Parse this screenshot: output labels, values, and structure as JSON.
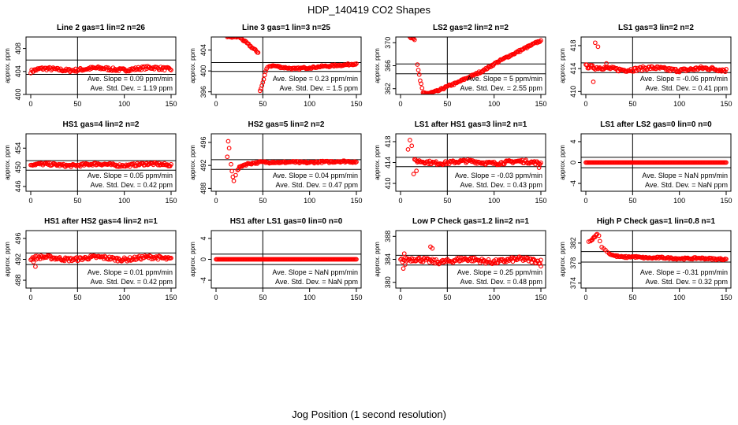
{
  "title": "HDP_140419  CO2 Shapes",
  "xlabel": "Jog Position (1 second resolution)",
  "ylabel": "approx. ppm",
  "colors": {
    "points": "#ff0000",
    "axes": "#000000",
    "background": "#ffffff"
  },
  "chart_data": [
    {
      "type": "scatter",
      "title": "Line 2 gas=1 lin=2 n=26",
      "xlim": [
        0,
        150
      ],
      "ylim": [
        400,
        410
      ],
      "xticks": [
        0,
        50,
        100,
        150
      ],
      "yticks": [
        400,
        404,
        408
      ],
      "hlines": [
        406,
        403.5
      ],
      "vline": 50,
      "slope_text": "Ave. Slope =  0.09  ppm/min",
      "sd_text": "Ave. Std. Dev. =  1.19  ppm",
      "series": {
        "gen": "flat",
        "n": 150,
        "base": 404.3,
        "noise": 0.35,
        "trend": 0.0015,
        "start": 404.0
      }
    },
    {
      "type": "scatter",
      "title": "Line 3 gas=1 lin=3 n=25",
      "xlim": [
        0,
        150
      ],
      "ylim": [
        395.5,
        406.5
      ],
      "xticks": [
        0,
        50,
        100,
        150
      ],
      "yticks": [
        396,
        400,
        404
      ],
      "hlines": [
        401.6,
        399.9
      ],
      "vline": 50,
      "slope_text": "Ave. Slope =  0.23  ppm/min",
      "sd_text": "Ave. Std. Dev. =  1.5  ppm",
      "series": {
        "gen": "dip",
        "points": [
          [
            12,
            406.5
          ],
          [
            15,
            406.5
          ],
          [
            20,
            406.5
          ],
          [
            25,
            406.5
          ],
          [
            45,
            403.5
          ],
          [
            47,
            396.2
          ],
          [
            48,
            396.6
          ],
          [
            49,
            397.2
          ],
          [
            50,
            397.8
          ],
          [
            51,
            398.4
          ],
          [
            52,
            399.2
          ],
          [
            53,
            399.9
          ],
          [
            54,
            400.4
          ],
          [
            55,
            400.7
          ],
          [
            57,
            400.9
          ],
          [
            60,
            401.0
          ],
          [
            65,
            400.9
          ],
          [
            70,
            400.7
          ],
          [
            75,
            400.6
          ],
          [
            80,
            400.5
          ],
          [
            85,
            400.4
          ],
          [
            90,
            400.5
          ],
          [
            95,
            400.6
          ],
          [
            100,
            400.6
          ],
          [
            105,
            400.7
          ],
          [
            110,
            400.8
          ],
          [
            115,
            400.9
          ],
          [
            120,
            400.9
          ],
          [
            125,
            401.0
          ],
          [
            130,
            401.1
          ],
          [
            135,
            401.1
          ],
          [
            140,
            401.2
          ],
          [
            145,
            401.3
          ],
          [
            150,
            401.4
          ]
        ]
      }
    },
    {
      "type": "scatter",
      "title": "LS2 gas=2 lin=2 n=2",
      "xlim": [
        0,
        150
      ],
      "ylim": [
        361,
        371
      ],
      "xticks": [
        0,
        50,
        100,
        150
      ],
      "yticks": [
        362,
        366,
        370
      ],
      "hlines": [
        366.3,
        364.6
      ],
      "vline": 50,
      "slope_text": "Ave. Slope =  5  ppm/min",
      "sd_text": "Ave. Std. Dev. =  2.55  ppm",
      "series": {
        "gen": "ramp",
        "points": [
          [
            10,
            371
          ],
          [
            15,
            370.5
          ],
          [
            18,
            366.2
          ],
          [
            21,
            363.4
          ],
          [
            24,
            361.3
          ],
          [
            30,
            361.2
          ],
          [
            40,
            361.6
          ],
          [
            50,
            362.4
          ],
          [
            60,
            363.0
          ],
          [
            70,
            363.8
          ],
          [
            80,
            364.5
          ],
          [
            90,
            365.3
          ],
          [
            100,
            366.3
          ],
          [
            110,
            367.2
          ],
          [
            120,
            368.0
          ],
          [
            130,
            368.8
          ],
          [
            140,
            369.6
          ],
          [
            150,
            370.4
          ]
        ]
      }
    },
    {
      "type": "scatter",
      "title": "LS1 gas=3 lin=2 n=2",
      "xlim": [
        0,
        150
      ],
      "ylim": [
        409.5,
        419.5
      ],
      "xticks": [
        0,
        50,
        100,
        150
      ],
      "yticks": [
        410,
        414,
        418
      ],
      "hlines": [
        415.0,
        413.3
      ],
      "vline": 50,
      "slope_text": "Ave. Slope =  -0.06  ppm/min",
      "sd_text": "Ave. Std. Dev. =  0.41  ppm",
      "series": {
        "gen": "flat",
        "n": 150,
        "base": 414.0,
        "noise": 0.4,
        "trend": -0.001,
        "start": 414.4,
        "extra": [
          [
            10,
            418.5
          ],
          [
            13,
            417.8
          ],
          [
            8,
            411.7
          ],
          [
            22,
            414.9
          ]
        ]
      }
    },
    {
      "type": "scatter",
      "title": "HS1 gas=4 lin=2 n=2",
      "xlim": [
        0,
        150
      ],
      "ylim": [
        445,
        457
      ],
      "xticks": [
        0,
        50,
        100,
        150
      ],
      "yticks": [
        446,
        450,
        454
      ],
      "hlines": [
        451.4,
        449.4
      ],
      "vline": 50,
      "slope_text": "Ave. Slope =  0.05  ppm/min",
      "sd_text": "Ave. Std. Dev. =  0.42  ppm",
      "series": {
        "gen": "flat",
        "n": 150,
        "base": 450.5,
        "noise": 0.35,
        "trend": 0.0005,
        "start": 450.6
      }
    },
    {
      "type": "scatter",
      "title": "HS2 gas=5 lin=2 n=2",
      "xlim": [
        0,
        150
      ],
      "ylim": [
        487.5,
        497.5
      ],
      "xticks": [
        0,
        50,
        100,
        150
      ],
      "yticks": [
        488,
        492,
        496
      ],
      "hlines": [
        493.0,
        491.3
      ],
      "vline": 50,
      "slope_text": "Ave. Slope =  0.04  ppm/min",
      "sd_text": "Ave. Std. Dev. =  0.47  ppm",
      "series": {
        "gen": "dip",
        "points": [
          [
            13,
            496.2
          ],
          [
            14,
            495.0
          ],
          [
            12,
            493.5
          ],
          [
            16,
            492.2
          ],
          [
            17,
            491.0
          ],
          [
            18,
            490.0
          ],
          [
            19,
            489.3
          ],
          [
            21,
            490.3
          ],
          [
            23,
            491.2
          ],
          [
            26,
            491.8
          ],
          [
            30,
            492.1
          ],
          [
            35,
            492.3
          ],
          [
            40,
            492.4
          ],
          [
            45,
            492.5
          ],
          [
            50,
            492.6
          ],
          [
            55,
            492.5
          ],
          [
            60,
            492.6
          ],
          [
            70,
            492.5
          ],
          [
            80,
            492.6
          ],
          [
            90,
            492.5
          ],
          [
            100,
            492.5
          ],
          [
            110,
            492.6
          ],
          [
            120,
            492.6
          ],
          [
            130,
            492.7
          ],
          [
            140,
            492.7
          ],
          [
            150,
            492.6
          ]
        ]
      }
    },
    {
      "type": "scatter",
      "title": "LS1 after HS1 gas=3 lin=2 n=1",
      "xlim": [
        0,
        150
      ],
      "ylim": [
        408.5,
        419.5
      ],
      "xticks": [
        0,
        50,
        100,
        150
      ],
      "yticks": [
        410,
        414,
        418
      ],
      "hlines": [
        415.0,
        413.2
      ],
      "vline": 50,
      "slope_text": "Ave. Slope =  -0.03  ppm/min",
      "sd_text": "Ave. Std. Dev. =  0.43  ppm",
      "series": {
        "gen": "flat",
        "n": 150,
        "base": 414.1,
        "noise": 0.4,
        "trend": -0.0005,
        "start": 414.2,
        "xstart": 15,
        "extra": [
          [
            10,
            418.3
          ],
          [
            12,
            417.2
          ],
          [
            8,
            416.5
          ],
          [
            14,
            411.8
          ],
          [
            17,
            412.4
          ],
          [
            148,
            413.0
          ]
        ]
      }
    },
    {
      "type": "scatter",
      "title": "LS1 after LS2 gas=0 lin=0 n=0",
      "xlim": [
        0,
        150
      ],
      "ylim": [
        -5.5,
        5.5
      ],
      "xticks": [
        0,
        50,
        100,
        150
      ],
      "yticks": [
        -4,
        0,
        4
      ],
      "hlines": [
        1,
        -1
      ],
      "vline": 50,
      "slope_text": "Ave. Slope =  NaN  ppm/min",
      "sd_text": "Ave. Std. Dev. =  NaN  ppm",
      "series": {
        "gen": "zero",
        "n": 150
      }
    },
    {
      "type": "scatter",
      "title": "HS1 after HS2 gas=4 lin=2 n=1",
      "xlim": [
        0,
        150
      ],
      "ylim": [
        486.5,
        497.5
      ],
      "xticks": [
        0,
        50,
        100,
        150
      ],
      "yticks": [
        488,
        492,
        496
      ],
      "hlines": [
        493.2,
        491.0
      ],
      "vline": 50,
      "slope_text": "Ave. Slope =  0.01  ppm/min",
      "sd_text": "Ave. Std. Dev. =  0.42  ppm",
      "series": {
        "gen": "flat",
        "n": 150,
        "base": 492.2,
        "noise": 0.45,
        "trend": 0.0,
        "start": 492.2,
        "extra": [
          [
            5,
            490.6
          ],
          [
            3,
            491.5
          ]
        ]
      }
    },
    {
      "type": "scatter",
      "title": "HS1 after LS1 gas=0 lin=0 n=0",
      "xlim": [
        0,
        150
      ],
      "ylim": [
        -5.5,
        5.5
      ],
      "xticks": [
        0,
        50,
        100,
        150
      ],
      "yticks": [
        -4,
        0,
        4
      ],
      "hlines": [
        1,
        -1
      ],
      "vline": 50,
      "slope_text": "Ave. Slope =  NaN  ppm/min",
      "sd_text": "Ave. Std. Dev. =  NaN  ppm",
      "series": {
        "gen": "zero",
        "n": 150
      }
    },
    {
      "type": "scatter",
      "title": "Low P Check gas=1.2 lin=2 n=1",
      "xlim": [
        0,
        150
      ],
      "ylim": [
        379,
        389
      ],
      "xticks": [
        0,
        50,
        100,
        150
      ],
      "yticks": [
        380,
        384,
        388
      ],
      "hlines": [
        384.7,
        383.0
      ],
      "vline": 50,
      "slope_text": "Ave. Slope =  0.25  ppm/min",
      "sd_text": "Ave. Std. Dev. =  0.48  ppm",
      "series": {
        "gen": "flat",
        "n": 150,
        "base": 383.8,
        "noise": 0.5,
        "trend": 0.0,
        "start": 383.8,
        "extra": [
          [
            32,
            386.2
          ],
          [
            34,
            385.9
          ],
          [
            3,
            382.4
          ],
          [
            5,
            383.1
          ],
          [
            4,
            385.0
          ],
          [
            150,
            382.8
          ]
        ]
      }
    },
    {
      "type": "scatter",
      "title": "High P Check gas=1 lin=0.8 n=1",
      "xlim": [
        0,
        150
      ],
      "ylim": [
        373,
        384.5
      ],
      "xticks": [
        0,
        50,
        100,
        150
      ],
      "yticks": [
        374,
        378,
        382
      ],
      "hlines": [
        380.3,
        378.2
      ],
      "vline": 50,
      "slope_text": "Ave. Slope =  -0.31  ppm/min",
      "sd_text": "Ave. Std. Dev. =  0.32  ppm",
      "series": {
        "gen": "dip",
        "points": [
          [
            3,
            382.3
          ],
          [
            5,
            382.4
          ],
          [
            12,
            383.8
          ],
          [
            14,
            383.5
          ],
          [
            15,
            382.4
          ],
          [
            17,
            381.2
          ],
          [
            19,
            380.9
          ],
          [
            21,
            380.6
          ],
          [
            23,
            380.2
          ],
          [
            25,
            379.9
          ],
          [
            30,
            379.5
          ],
          [
            35,
            379.3
          ],
          [
            40,
            379.2
          ],
          [
            45,
            379.2
          ],
          [
            50,
            379.3
          ],
          [
            60,
            379.1
          ],
          [
            70,
            379.0
          ],
          [
            80,
            379.1
          ],
          [
            90,
            379.0
          ],
          [
            100,
            378.9
          ],
          [
            110,
            378.9
          ],
          [
            120,
            379.0
          ],
          [
            130,
            378.9
          ],
          [
            140,
            378.8
          ],
          [
            150,
            378.8
          ]
        ]
      }
    }
  ]
}
